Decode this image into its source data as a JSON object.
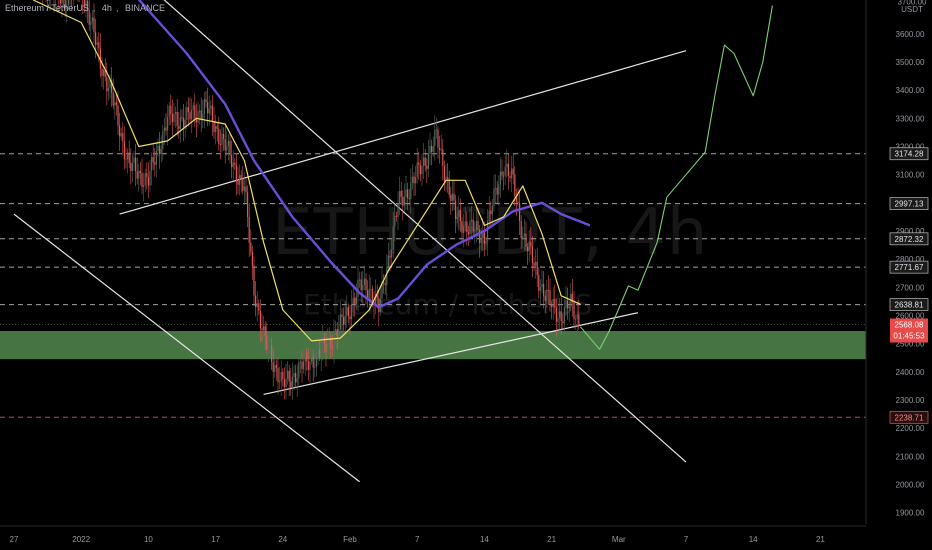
{
  "header": {
    "symbol": "Ethereum / TetherUS",
    "interval": "4h",
    "exchange": "BINANCE"
  },
  "watermark": {
    "ticker": "ETHUSDT, 4h",
    "name": "Ethereum / TetherUS"
  },
  "colors": {
    "background": "#000000",
    "candle_up": "#5b6b5e",
    "candle_down": "#e05a5a",
    "sma_fast": "#f0e06a",
    "sma_slow": "#6a4fd6",
    "trendlines": "#e6e6e6",
    "projection": "#7fcf74",
    "support_zone": "#5e9c5a",
    "resistance_dash": "#bfbfbf",
    "support_dash": "#e05a5a",
    "price_badge": "#e84a4a"
  },
  "chart_data": {
    "type": "line",
    "title": "",
    "y_axis_unit": "USDT",
    "ylim": [
      1860,
      3720
    ],
    "y_ticks": [
      1900,
      2000,
      2100,
      2200,
      2300,
      2400,
      2500,
      2600,
      2700,
      2800,
      2900,
      3000,
      3100,
      3200,
      3300,
      3400,
      3500,
      3600,
      3700
    ],
    "x_ticks": [
      "27",
      "2022",
      "10",
      "17",
      "24",
      "Feb",
      "7",
      "14",
      "21",
      "Mar",
      "7",
      "14",
      "21"
    ],
    "x_tick_dates": [
      "2021-12-27",
      "2022-01-03",
      "2022-01-10",
      "2022-01-17",
      "2022-01-24",
      "2022-01-31",
      "2022-02-07",
      "2022-02-14",
      "2022-02-21",
      "2022-02-28",
      "2022-03-07",
      "2022-03-14",
      "2022-03-21"
    ],
    "price_levels": [
      {
        "value": 3174.28,
        "label": "3174.28",
        "style": "dashed"
      },
      {
        "value": 2997.13,
        "label": "2997.13",
        "style": "dashed"
      },
      {
        "value": 2872.32,
        "label": "2872.32",
        "style": "dashed"
      },
      {
        "value": 2771.67,
        "label": "2771.67",
        "style": "dashed"
      },
      {
        "value": 2638.81,
        "label": "2638.81",
        "style": "dashed"
      },
      {
        "value": 2238.71,
        "label": "2238.71",
        "style": "dashed-red"
      }
    ],
    "current_price": {
      "value": 2568.08,
      "label": "2568.08",
      "countdown": "01:45:53"
    },
    "support_zone": {
      "low": 2445,
      "high": 2545
    },
    "price_path": [
      {
        "date": "2021-12-27",
        "price": 3960
      },
      {
        "date": "2021-12-29",
        "price": 3800
      },
      {
        "date": "2022-01-01",
        "price": 3720
      },
      {
        "date": "2022-01-03",
        "price": 3780
      },
      {
        "date": "2022-01-05",
        "price": 3500
      },
      {
        "date": "2022-01-06",
        "price": 3400
      },
      {
        "date": "2022-01-08",
        "price": 3130
      },
      {
        "date": "2022-01-10",
        "price": 3080
      },
      {
        "date": "2022-01-12",
        "price": 3300
      },
      {
        "date": "2022-01-14",
        "price": 3300
      },
      {
        "date": "2022-01-16",
        "price": 3340
      },
      {
        "date": "2022-01-18",
        "price": 3200
      },
      {
        "date": "2022-01-20",
        "price": 3050
      },
      {
        "date": "2022-01-21",
        "price": 2700
      },
      {
        "date": "2022-01-22",
        "price": 2520
      },
      {
        "date": "2022-01-23",
        "price": 2440
      },
      {
        "date": "2022-01-24",
        "price": 2350
      },
      {
        "date": "2022-01-26",
        "price": 2420
      },
      {
        "date": "2022-01-28",
        "price": 2470
      },
      {
        "date": "2022-01-30",
        "price": 2560
      },
      {
        "date": "2022-02-01",
        "price": 2700
      },
      {
        "date": "2022-02-02",
        "price": 2700
      },
      {
        "date": "2022-02-03",
        "price": 2620
      },
      {
        "date": "2022-02-05",
        "price": 2990
      },
      {
        "date": "2022-02-07",
        "price": 3100
      },
      {
        "date": "2022-02-09",
        "price": 3230
      },
      {
        "date": "2022-02-10",
        "price": 3100
      },
      {
        "date": "2022-02-11",
        "price": 2950
      },
      {
        "date": "2022-02-13",
        "price": 2900
      },
      {
        "date": "2022-02-14",
        "price": 2880
      },
      {
        "date": "2022-02-16",
        "price": 3140
      },
      {
        "date": "2022-02-17",
        "price": 3070
      },
      {
        "date": "2022-02-18",
        "price": 2890
      },
      {
        "date": "2022-02-20",
        "price": 2700
      },
      {
        "date": "2022-02-21",
        "price": 2630
      },
      {
        "date": "2022-02-22",
        "price": 2600
      },
      {
        "date": "2022-02-23",
        "price": 2640
      },
      {
        "date": "2022-02-24",
        "price": 2570
      }
    ],
    "sma_fast": [
      {
        "date": "2021-12-29",
        "price": 3720
      },
      {
        "date": "2022-01-03",
        "price": 3640
      },
      {
        "date": "2022-01-06",
        "price": 3440
      },
      {
        "date": "2022-01-09",
        "price": 3200
      },
      {
        "date": "2022-01-12",
        "price": 3220
      },
      {
        "date": "2022-01-15",
        "price": 3300
      },
      {
        "date": "2022-01-18",
        "price": 3280
      },
      {
        "date": "2022-01-20",
        "price": 3150
      },
      {
        "date": "2022-01-22",
        "price": 2860
      },
      {
        "date": "2022-01-24",
        "price": 2620
      },
      {
        "date": "2022-01-27",
        "price": 2510
      },
      {
        "date": "2022-01-30",
        "price": 2520
      },
      {
        "date": "2022-02-02",
        "price": 2620
      },
      {
        "date": "2022-02-04",
        "price": 2760
      },
      {
        "date": "2022-02-07",
        "price": 2920
      },
      {
        "date": "2022-02-10",
        "price": 3080
      },
      {
        "date": "2022-02-12",
        "price": 3080
      },
      {
        "date": "2022-02-14",
        "price": 2920
      },
      {
        "date": "2022-02-16",
        "price": 2950
      },
      {
        "date": "2022-02-18",
        "price": 3060
      },
      {
        "date": "2022-02-20",
        "price": 2890
      },
      {
        "date": "2022-02-22",
        "price": 2670
      },
      {
        "date": "2022-02-24",
        "price": 2640
      }
    ],
    "sma_slow": [
      {
        "date": "2022-01-08",
        "price": 3760
      },
      {
        "date": "2022-01-14",
        "price": 3530
      },
      {
        "date": "2022-01-18",
        "price": 3350
      },
      {
        "date": "2022-01-21",
        "price": 3150
      },
      {
        "date": "2022-01-25",
        "price": 2950
      },
      {
        "date": "2022-01-29",
        "price": 2790
      },
      {
        "date": "2022-02-01",
        "price": 2680
      },
      {
        "date": "2022-02-03",
        "price": 2630
      },
      {
        "date": "2022-02-05",
        "price": 2660
      },
      {
        "date": "2022-02-08",
        "price": 2780
      },
      {
        "date": "2022-02-11",
        "price": 2850
      },
      {
        "date": "2022-02-14",
        "price": 2900
      },
      {
        "date": "2022-02-17",
        "price": 2970
      },
      {
        "date": "2022-02-20",
        "price": 3000
      },
      {
        "date": "2022-02-22",
        "price": 2960
      },
      {
        "date": "2022-02-25",
        "price": 2920
      }
    ],
    "projection": [
      {
        "date": "2022-02-24",
        "price": 2560
      },
      {
        "date": "2022-02-26",
        "price": 2480
      },
      {
        "date": "2022-02-27",
        "price": 2545
      },
      {
        "date": "2022-03-01",
        "price": 2705
      },
      {
        "date": "2022-03-02",
        "price": 2690
      },
      {
        "date": "2022-03-04",
        "price": 2860
      },
      {
        "date": "2022-03-05",
        "price": 3020
      },
      {
        "date": "2022-03-07",
        "price": 3100
      },
      {
        "date": "2022-03-09",
        "price": 3180
      },
      {
        "date": "2022-03-10",
        "price": 3380
      },
      {
        "date": "2022-03-11",
        "price": 3560
      },
      {
        "date": "2022-03-12",
        "price": 3530
      },
      {
        "date": "2022-03-14",
        "price": 3380
      },
      {
        "date": "2022-03-15",
        "price": 3500
      },
      {
        "date": "2022-03-16",
        "price": 3700
      }
    ],
    "trendlines": [
      {
        "name": "channel-upper",
        "from": {
          "date": "2022-01-07",
          "price": 2960
        },
        "to": {
          "date": "2022-03-07",
          "price": 3540
        }
      },
      {
        "name": "channel-lower",
        "from": {
          "date": "2022-01-22",
          "price": 2320
        },
        "to": {
          "date": "2022-03-02",
          "price": 2610
        }
      },
      {
        "name": "descending-upper",
        "from": {
          "date": "2022-01-11",
          "price": 3740
        },
        "to": {
          "date": "2022-03-07",
          "price": 2080
        }
      },
      {
        "name": "descending-lower",
        "from": {
          "date": "2021-12-27",
          "price": 2960
        },
        "to": {
          "date": "2022-02-01",
          "price": 2010
        }
      }
    ]
  }
}
